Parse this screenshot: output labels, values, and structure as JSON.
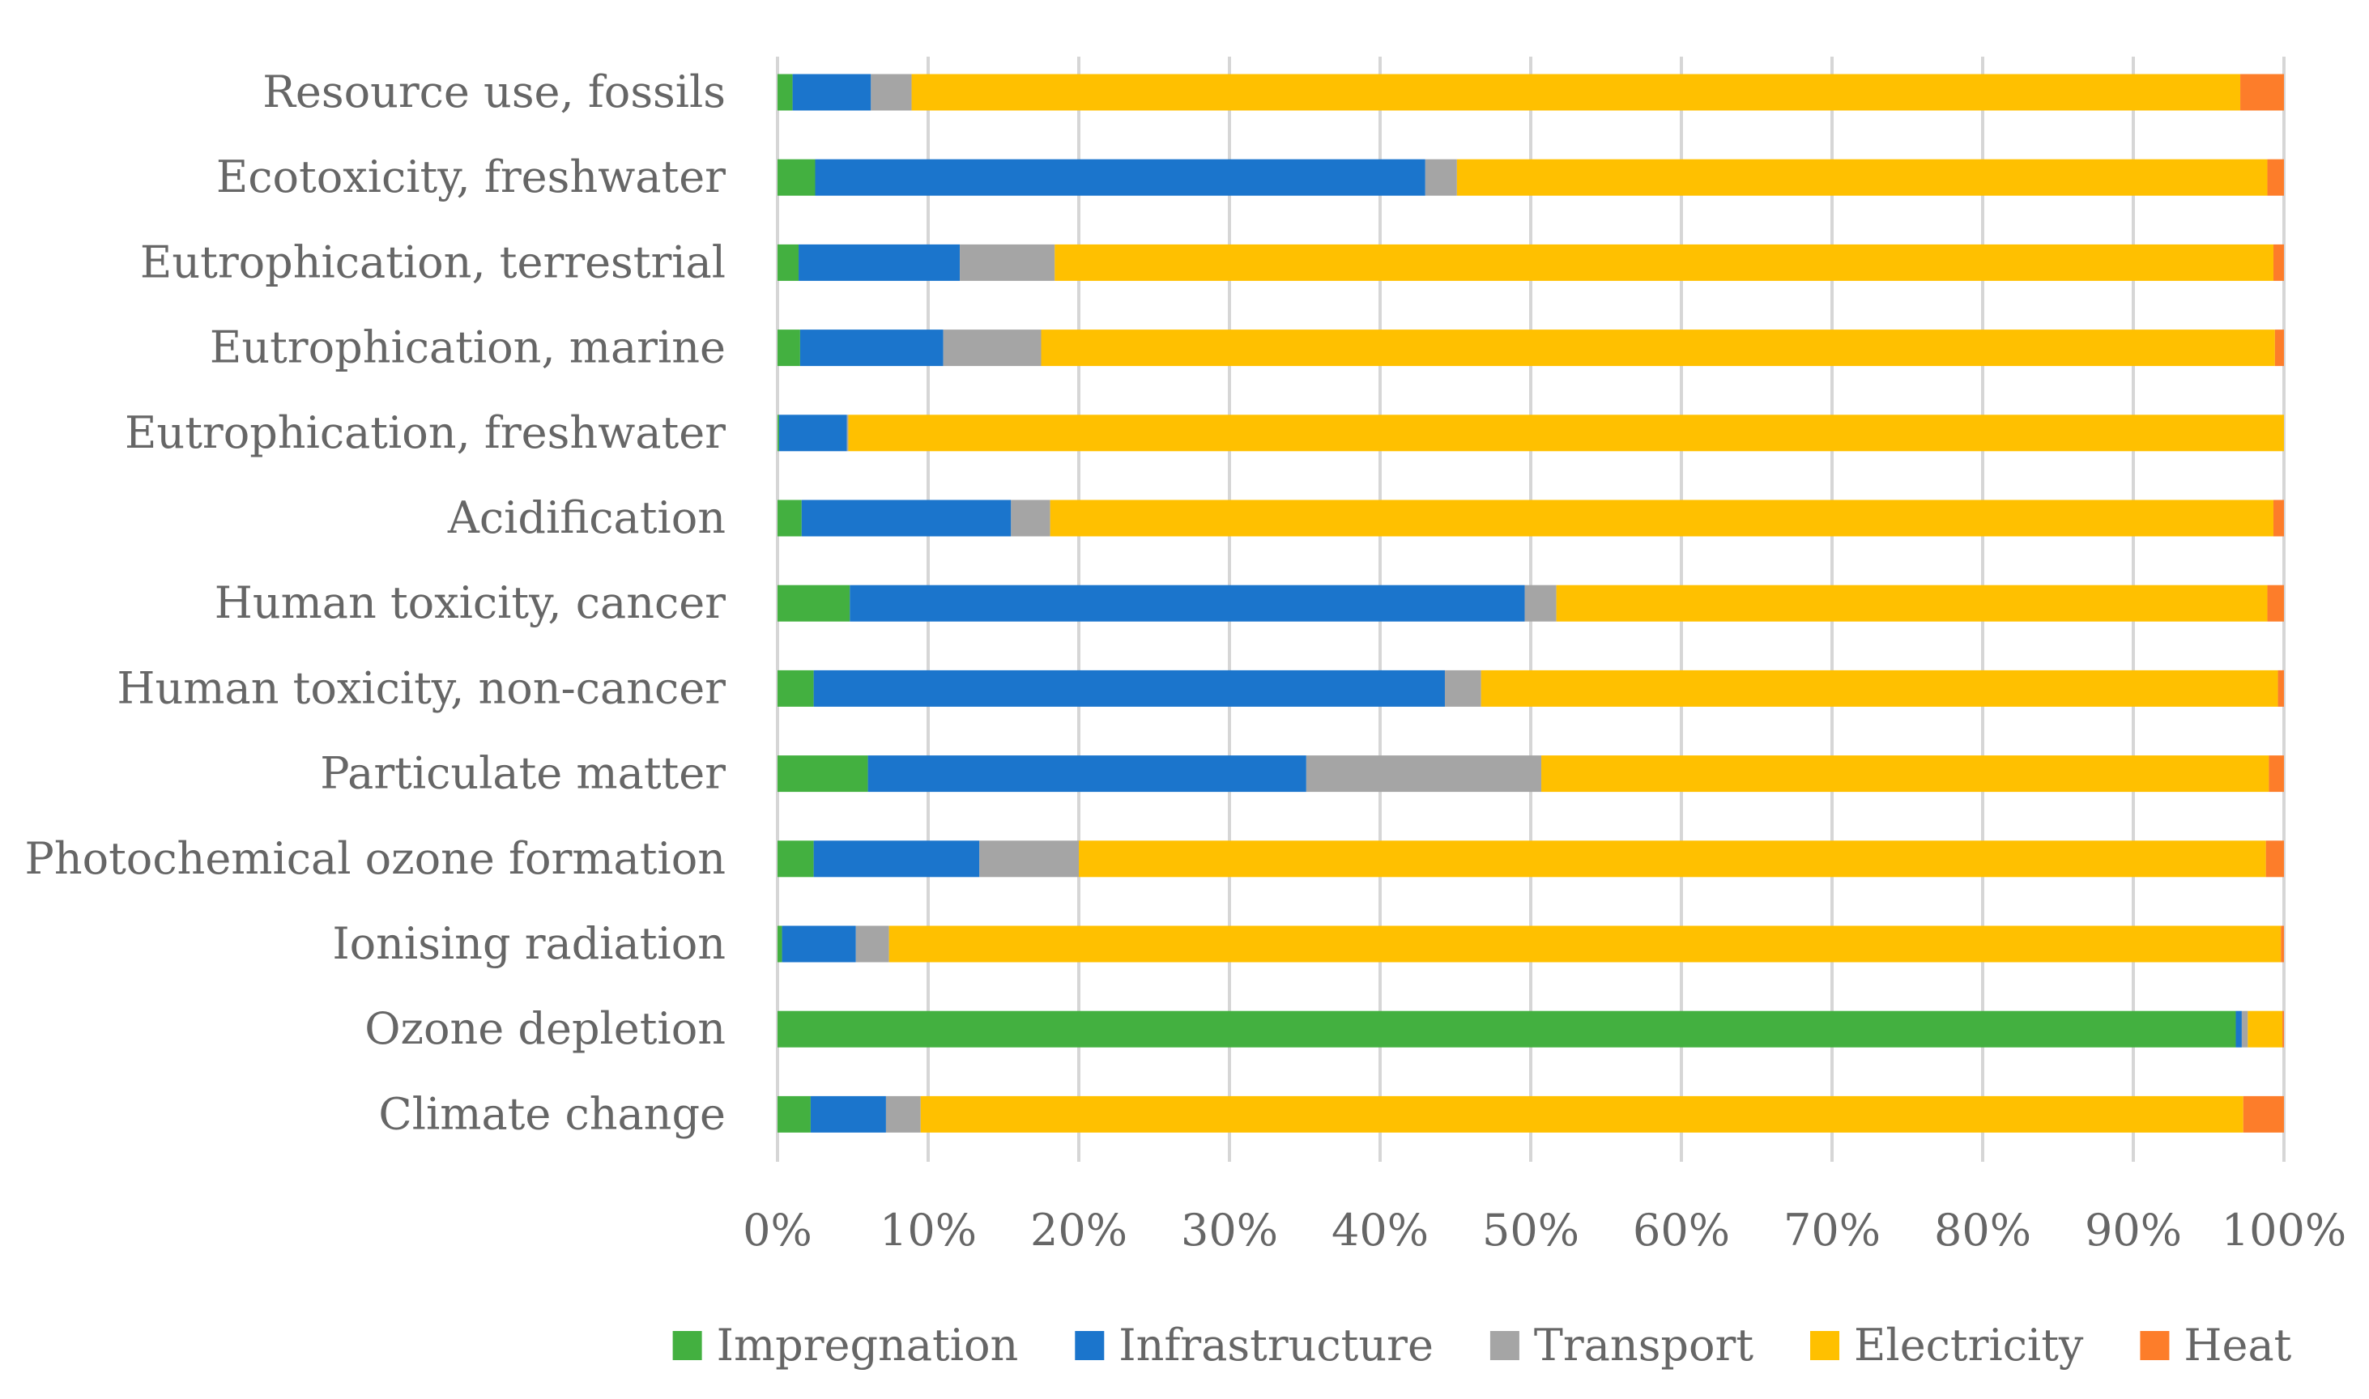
{
  "chart_data": {
    "type": "bar",
    "orientation": "horizontal",
    "stacked": "percent",
    "title": "",
    "xlabel": "",
    "ylabel": "",
    "xlim": [
      0,
      100
    ],
    "grid": true,
    "legend_position": "bottom",
    "x_ticks": [
      "0%",
      "10%",
      "20%",
      "30%",
      "40%",
      "50%",
      "60%",
      "70%",
      "80%",
      "90%",
      "100%"
    ],
    "categories": [
      "Resource use, fossils",
      "Ecotoxicity, freshwater",
      "Eutrophication, terrestrial",
      "Eutrophication, marine",
      "Eutrophication, freshwater",
      "Acidification",
      "Human toxicity, cancer",
      "Human toxicity, non-cancer",
      "Particulate matter",
      "Photochemical ozone formation",
      "Ionising radiation",
      "Ozone depletion",
      "Climate change"
    ],
    "series": [
      {
        "name": "Impregnation",
        "color": "#43b040",
        "values": [
          1.0,
          2.5,
          1.4,
          1.5,
          0.1,
          1.6,
          4.8,
          2.4,
          6.0,
          2.4,
          0.3,
          96.8,
          2.2
        ]
      },
      {
        "name": "Infrastructure",
        "color": "#1b75cc",
        "values": [
          5.2,
          40.5,
          10.7,
          9.5,
          4.5,
          13.9,
          44.8,
          41.9,
          29.1,
          11.0,
          4.9,
          0.4,
          5.0
        ]
      },
      {
        "name": "Transport",
        "color": "#a5a5a5",
        "values": [
          2.7,
          2.1,
          6.3,
          6.5,
          0.1,
          2.6,
          2.1,
          2.4,
          15.6,
          6.6,
          2.2,
          0.4,
          2.3
        ]
      },
      {
        "name": "Electricity",
        "color": "#ffc000",
        "values": [
          88.2,
          53.8,
          80.9,
          81.9,
          95.3,
          81.2,
          47.2,
          52.9,
          48.3,
          78.8,
          92.4,
          2.3,
          87.8
        ]
      },
      {
        "name": "Heat",
        "color": "#fd7d2a",
        "values": [
          2.9,
          1.1,
          0.7,
          0.6,
          0.0,
          0.7,
          1.1,
          0.4,
          1.0,
          1.2,
          0.2,
          0.1,
          2.7
        ]
      }
    ]
  }
}
